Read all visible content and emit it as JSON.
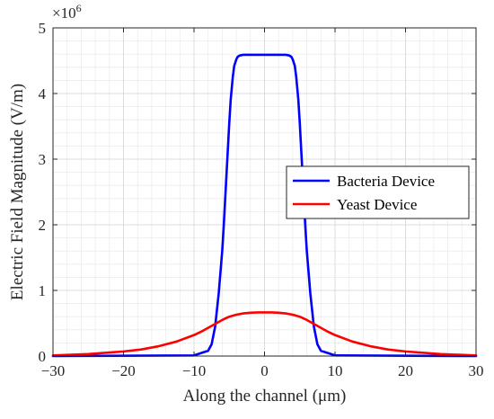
{
  "chart_data": {
    "type": "line",
    "xlabel": "Along the channel (μm)",
    "ylabel": "Electric Field Magnitude (V/m)",
    "y_exponent_label": "×10",
    "y_exponent_power": "6",
    "xlim": [
      -30,
      30
    ],
    "ylim": [
      0,
      5
    ],
    "x_ticks": [
      -30,
      -20,
      -10,
      0,
      10,
      20,
      30
    ],
    "x_tick_labels": [
      "−30",
      "−20",
      "−10",
      "0",
      "10",
      "20",
      "30"
    ],
    "y_ticks": [
      0,
      1,
      2,
      3,
      4,
      5
    ],
    "y_tick_labels": [
      "0",
      "1",
      "2",
      "3",
      "4",
      "5"
    ],
    "grid": true,
    "minor_grid": true,
    "legend_position": "right",
    "colors": {
      "bacteria": "#0000ff",
      "yeast": "#ff0000",
      "grid": "#dcdcdc",
      "axis": "#262626"
    },
    "series": [
      {
        "name": "Bacteria Device",
        "color": "#0000ff",
        "x": [
          -30,
          -10,
          -8,
          -7.5,
          -7,
          -6.5,
          -6,
          -5.8,
          -5.5,
          -5.2,
          -5,
          -4.8,
          -4.5,
          -4.3,
          -4,
          -3.8,
          -3.5,
          -3,
          0,
          3,
          3.5,
          3.8,
          4,
          4.3,
          4.5,
          4.8,
          5,
          5.2,
          5.5,
          5.8,
          6,
          6.5,
          7,
          7.5,
          8,
          10,
          30
        ],
        "y": [
          0,
          0.01,
          0.08,
          0.18,
          0.45,
          0.95,
          1.6,
          1.95,
          2.55,
          3.15,
          3.55,
          3.9,
          4.25,
          4.42,
          4.52,
          4.56,
          4.58,
          4.59,
          4.59,
          4.59,
          4.58,
          4.56,
          4.52,
          4.42,
          4.25,
          3.9,
          3.55,
          3.15,
          2.55,
          1.95,
          1.6,
          0.95,
          0.45,
          0.18,
          0.08,
          0.01,
          0
        ]
      },
      {
        "name": "Yeast Device",
        "color": "#ff0000",
        "x": [
          -30,
          -25,
          -20,
          -17.5,
          -15,
          -12.5,
          -10,
          -9,
          -8,
          -7,
          -6,
          -5,
          -4,
          -3,
          -2,
          -1,
          0,
          1,
          2,
          3,
          4,
          5,
          6,
          7,
          8,
          9,
          10,
          12.5,
          15,
          17.5,
          20,
          25,
          30
        ],
        "y": [
          0.01,
          0.03,
          0.07,
          0.1,
          0.15,
          0.22,
          0.32,
          0.37,
          0.43,
          0.49,
          0.55,
          0.6,
          0.63,
          0.65,
          0.66,
          0.665,
          0.665,
          0.665,
          0.66,
          0.65,
          0.63,
          0.6,
          0.55,
          0.49,
          0.43,
          0.37,
          0.32,
          0.22,
          0.15,
          0.1,
          0.07,
          0.03,
          0.01
        ]
      }
    ]
  }
}
